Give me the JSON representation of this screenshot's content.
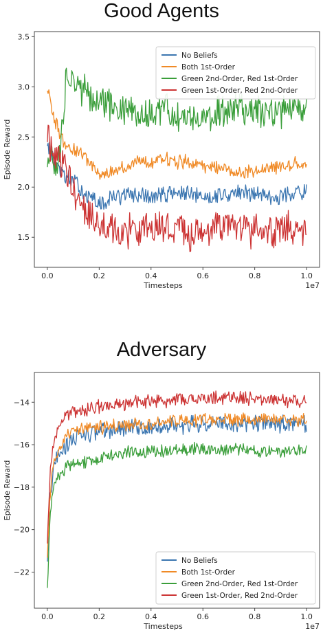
{
  "chart_data": [
    {
      "type": "line",
      "title": "Good Agents",
      "xlabel": "Timesteps",
      "ylabel": "Episode Reward",
      "x_scale_label": "1e7",
      "xlim": [
        -0.05,
        1.05
      ],
      "ylim": [
        1.2,
        3.55
      ],
      "xticks": [
        0.0,
        0.2,
        0.4,
        0.6,
        0.8,
        1.0
      ],
      "xtick_labels": [
        "0.0",
        "0.2",
        "0.4",
        "0.6",
        "0.8",
        "1.0"
      ],
      "yticks": [
        1.5,
        2.0,
        2.5,
        3.0,
        3.5
      ],
      "ytick_labels": [
        "1.5",
        "2.0",
        "2.5",
        "3.0",
        "3.5"
      ],
      "legend_position": "top-right",
      "x": [
        0.0,
        0.025,
        0.05,
        0.075,
        0.1,
        0.125,
        0.15,
        0.175,
        0.2,
        0.225,
        0.25,
        0.3,
        0.35,
        0.4,
        0.45,
        0.5,
        0.55,
        0.6,
        0.65,
        0.7,
        0.75,
        0.8,
        0.85,
        0.9,
        0.95,
        1.0
      ],
      "series": [
        {
          "name": "No Beliefs",
          "color": "#3a75b0",
          "noise": 0.07,
          "spread": 1,
          "values": [
            2.45,
            2.25,
            2.15,
            2.1,
            2.05,
            2.0,
            1.92,
            1.88,
            1.82,
            1.85,
            1.9,
            1.92,
            1.92,
            1.9,
            1.93,
            1.95,
            1.92,
            1.9,
            1.92,
            1.93,
            1.94,
            1.94,
            1.92,
            1.9,
            1.95,
            1.95
          ]
        },
        {
          "name": "Both 1st-Order",
          "color": "#f08a26",
          "noise": 0.06,
          "spread": 1,
          "values": [
            3.0,
            2.7,
            2.5,
            2.42,
            2.38,
            2.33,
            2.28,
            2.22,
            2.12,
            2.13,
            2.17,
            2.2,
            2.25,
            2.25,
            2.27,
            2.25,
            2.25,
            2.22,
            2.2,
            2.15,
            2.14,
            2.17,
            2.2,
            2.2,
            2.23,
            2.25
          ]
        },
        {
          "name": "Green 2nd-Order, Red 1st-Order",
          "color": "#3a9e3a",
          "noise": 0.14,
          "spread": 1,
          "values": [
            2.3,
            2.25,
            2.3,
            3.15,
            3.1,
            3.0,
            2.95,
            2.9,
            2.85,
            2.82,
            2.82,
            2.78,
            2.72,
            2.75,
            2.78,
            2.72,
            2.7,
            2.7,
            2.76,
            2.72,
            2.78,
            2.75,
            2.72,
            2.75,
            2.78,
            2.75
          ]
        },
        {
          "name": "Green 1st-Order, Red 2nd-Order",
          "color": "#cc3333",
          "noise": 0.14,
          "spread": 1,
          "values": [
            2.45,
            2.35,
            2.3,
            2.15,
            2.0,
            1.85,
            1.75,
            1.7,
            1.65,
            1.6,
            1.58,
            1.55,
            1.58,
            1.6,
            1.58,
            1.55,
            1.5,
            1.55,
            1.58,
            1.58,
            1.6,
            1.55,
            1.55,
            1.6,
            1.58,
            1.6
          ]
        }
      ]
    },
    {
      "type": "line",
      "title": "Adversary",
      "xlabel": "Timesteps",
      "ylabel": "Episode Reward",
      "x_scale_label": "1e7",
      "xlim": [
        -0.05,
        1.05
      ],
      "ylim": [
        -23.7,
        -12.6
      ],
      "xticks": [
        0.0,
        0.2,
        0.4,
        0.6,
        0.8,
        1.0
      ],
      "xtick_labels": [
        "0.0",
        "0.2",
        "0.4",
        "0.6",
        "0.8",
        "1.0"
      ],
      "yticks": [
        -14,
        -16,
        -18,
        -20,
        -22
      ],
      "ytick_labels": [
        "−14",
        "−16",
        "−18",
        "−20",
        "−22"
      ],
      "legend_position": "bottom-right",
      "x": [
        0.0,
        0.01,
        0.02,
        0.04,
        0.06,
        0.08,
        0.1,
        0.15,
        0.2,
        0.25,
        0.3,
        0.35,
        0.4,
        0.45,
        0.5,
        0.55,
        0.6,
        0.65,
        0.7,
        0.75,
        0.8,
        0.85,
        0.9,
        0.95,
        1.0
      ],
      "series": [
        {
          "name": "No Beliefs",
          "color": "#3a75b0",
          "noise": 0.35,
          "spread": 1,
          "values": [
            -21.5,
            -18.8,
            -17.5,
            -16.5,
            -16.2,
            -15.9,
            -15.7,
            -15.5,
            -15.4,
            -15.3,
            -15.3,
            -15.2,
            -15.2,
            -15.1,
            -15.1,
            -15.0,
            -15.0,
            -15.0,
            -15.0,
            -15.0,
            -15.0,
            -15.0,
            -15.0,
            -15.0,
            -15.1
          ]
        },
        {
          "name": "Both 1st-Order",
          "color": "#f08a26",
          "noise": 0.25,
          "spread": 1,
          "values": [
            -21.5,
            -18.5,
            -17.2,
            -16.3,
            -15.9,
            -15.6,
            -15.4,
            -15.2,
            -15.2,
            -15.1,
            -15.1,
            -15.0,
            -15.0,
            -14.9,
            -14.9,
            -14.9,
            -14.8,
            -14.8,
            -14.8,
            -14.8,
            -14.8,
            -14.8,
            -14.8,
            -14.8,
            -14.8
          ]
        },
        {
          "name": "Green 2nd-Order, Red 1st-Order",
          "color": "#3a9e3a",
          "noise": 0.25,
          "spread": 1,
          "values": [
            -22.9,
            -19.5,
            -18.3,
            -17.5,
            -17.2,
            -17.0,
            -16.9,
            -16.8,
            -16.6,
            -16.5,
            -16.4,
            -16.4,
            -16.3,
            -16.3,
            -16.2,
            -16.2,
            -16.2,
            -16.2,
            -16.2,
            -16.2,
            -16.3,
            -16.3,
            -16.3,
            -16.3,
            -16.3
          ]
        },
        {
          "name": "Green 1st-Order, Red 2nd-Order",
          "color": "#cc3333",
          "noise": 0.28,
          "spread": 1,
          "values": [
            -20.8,
            -17.5,
            -16.2,
            -15.2,
            -14.8,
            -14.6,
            -14.5,
            -14.3,
            -14.2,
            -14.2,
            -14.1,
            -14.0,
            -14.0,
            -13.9,
            -13.9,
            -13.9,
            -13.8,
            -13.8,
            -13.8,
            -13.8,
            -13.8,
            -13.9,
            -13.9,
            -13.9,
            -13.9
          ]
        }
      ]
    }
  ]
}
